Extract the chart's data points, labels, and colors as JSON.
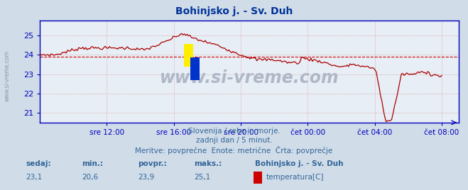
{
  "title": "Bohinjsko j. - Sv. Duh",
  "title_color": "#003399",
  "bg_color": "#d0dce8",
  "plot_bg_color": "#e8eef5",
  "line_color": "#aa0000",
  "grid_color": "#cc8888",
  "grid_color_h": "#cc8888",
  "axis_color": "#0000bb",
  "text_color": "#336699",
  "yticks": [
    21,
    22,
    23,
    24,
    25
  ],
  "ylim_min": 20.5,
  "ylim_max": 25.75,
  "avg_line_y": 23.9,
  "avg_line_color": "#cc0000",
  "watermark": "www.si-vreme.com",
  "watermark_color": "#b0b8c8",
  "subtitle1": "Slovenija / reke in morje.",
  "subtitle2": "zadnji dan / 5 minut.",
  "subtitle3": "Meritve: povprečne  Enote: metrične  Črta: povprečje",
  "footer_labels": [
    "sedaj:",
    "min.:",
    "povpr.:",
    "maks.:"
  ],
  "footer_values": [
    "23,1",
    "20,6",
    "23,9",
    "25,1"
  ],
  "footer_station": "Bohinjsko j. - Sv. Duh",
  "footer_legend": "temperatura[C]",
  "footer_legend_color": "#cc0000",
  "xtick_labels": [
    "sre 12:00",
    "sre 16:00",
    "sre 20:00",
    "čet 00:00",
    "čet 04:00",
    "čet 08:00"
  ],
  "xtick_positions": [
    0.1667,
    0.3333,
    0.5,
    0.6667,
    0.8333,
    1.0
  ],
  "xlim_min": 0.0,
  "xlim_max": 1.042,
  "num_points": 290,
  "sidebar_text": "www.si-vreme.com",
  "sidebar_color": "#8899aa"
}
